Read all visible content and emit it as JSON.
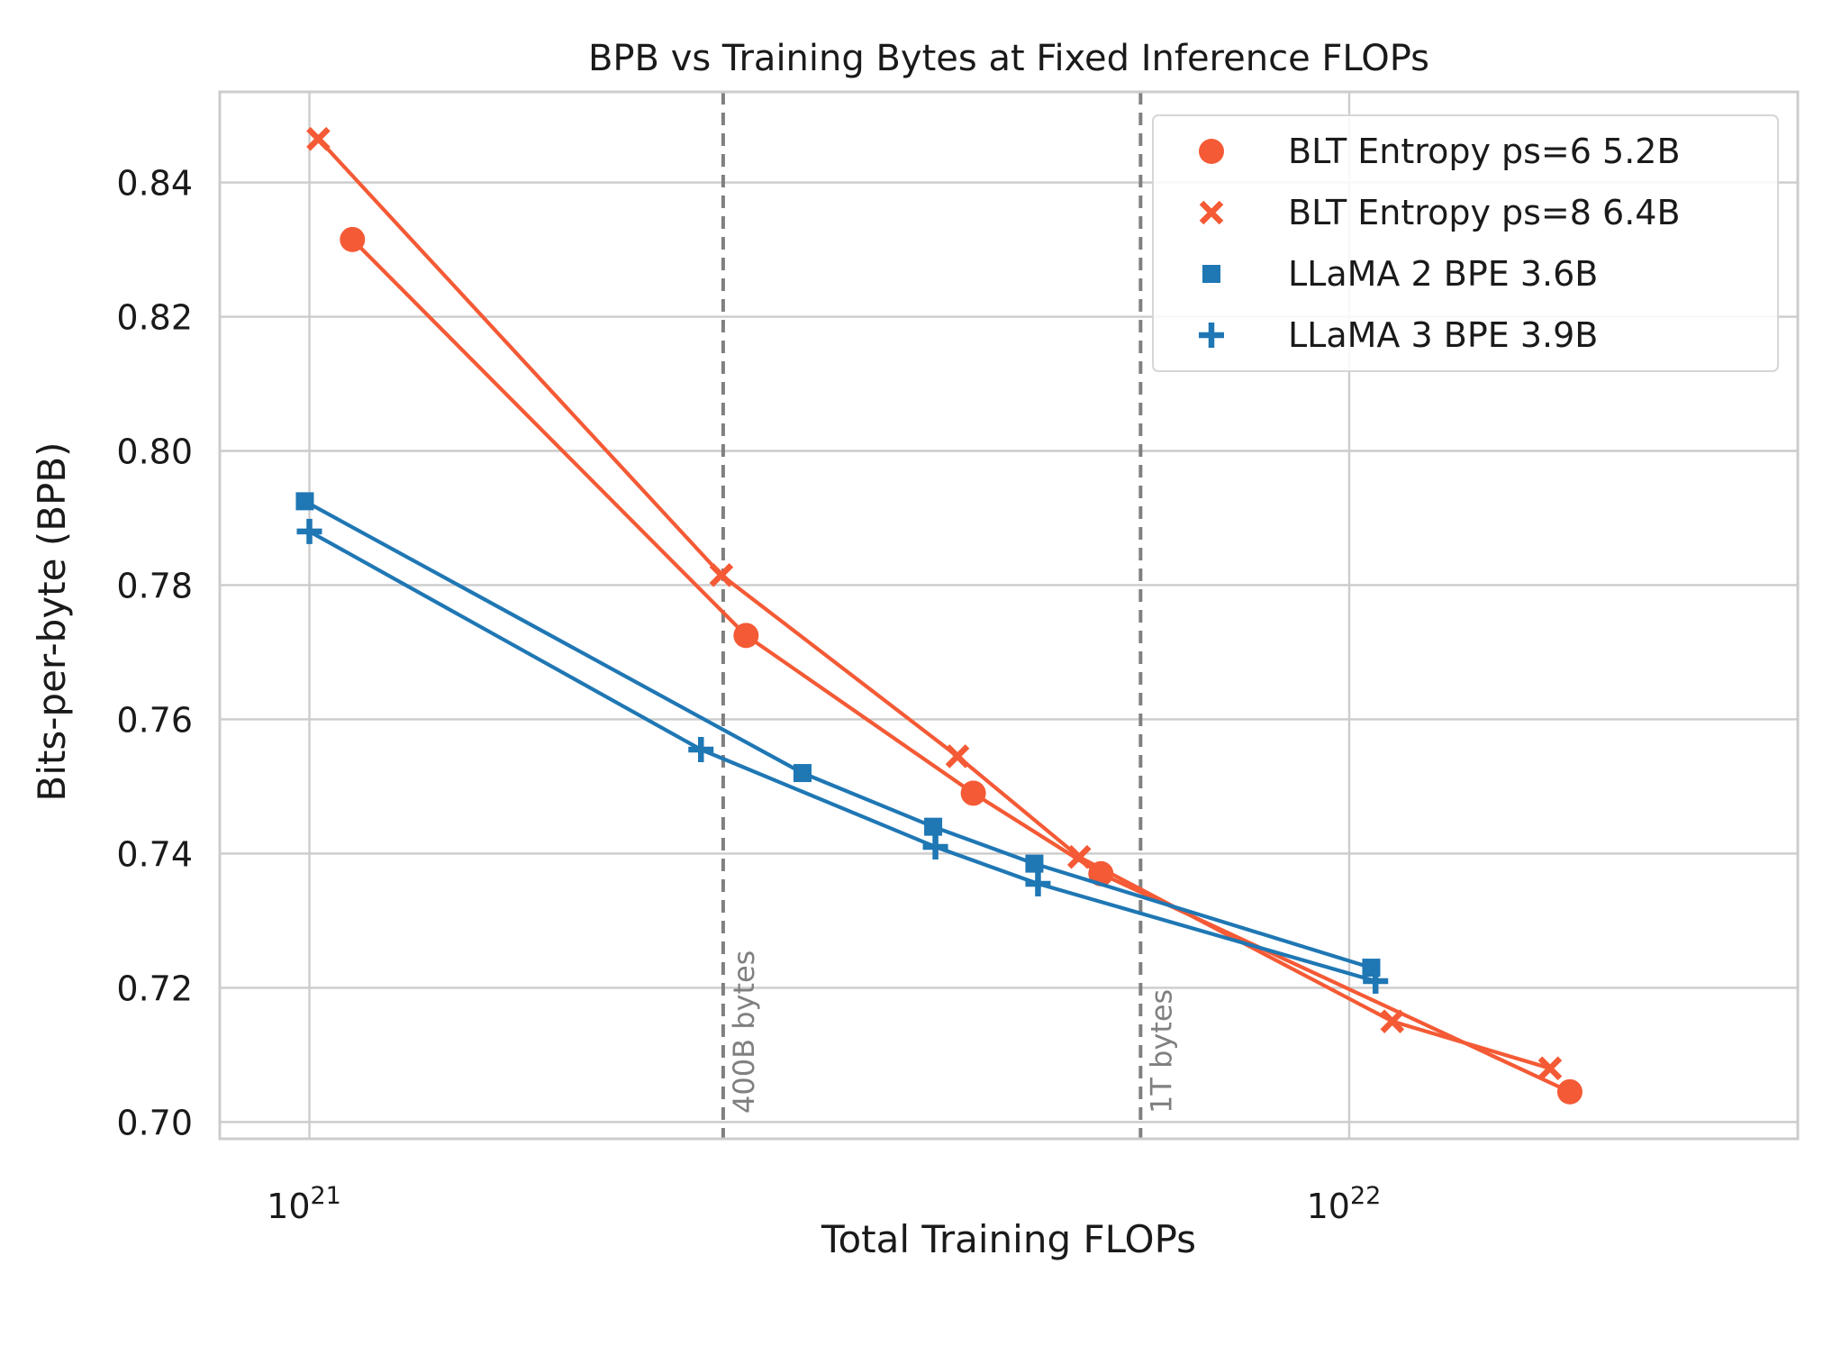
{
  "chart_data": {
    "type": "line",
    "title": "BPB vs Training Bytes at Fixed Inference FLOPs",
    "xlabel": "Total Training FLOPs",
    "ylabel": "Bits-per-byte (BPB)",
    "x_scale": "log",
    "xlim": [
      8.2e+20,
      2.7e+22
    ],
    "ylim": [
      0.6975,
      0.8535
    ],
    "grid": true,
    "legend_position": "top-right",
    "x_ticks": [
      {
        "value": 1e+21,
        "base": "10",
        "exp": "21"
      },
      {
        "value": 1e+22,
        "base": "10",
        "exp": "22"
      }
    ],
    "y_ticks": [
      {
        "value": 0.7,
        "label": "0.70"
      },
      {
        "value": 0.72,
        "label": "0.72"
      },
      {
        "value": 0.74,
        "label": "0.74"
      },
      {
        "value": 0.76,
        "label": "0.76"
      },
      {
        "value": 0.78,
        "label": "0.78"
      },
      {
        "value": 0.8,
        "label": "0.80"
      },
      {
        "value": 0.82,
        "label": "0.82"
      },
      {
        "value": 0.84,
        "label": "0.84"
      }
    ],
    "reference_lines": [
      {
        "x": 2.5e+21,
        "label": "400B bytes"
      },
      {
        "x": 6.3e+21,
        "label": "1T bytes"
      }
    ],
    "series": [
      {
        "name": "BLT Entropy ps=6 5.2B",
        "color": "#f45a35",
        "marker": "circle",
        "points": [
          {
            "x": 1.1e+21,
            "y": 0.8315
          },
          {
            "x": 2.63e+21,
            "y": 0.7725
          },
          {
            "x": 4.35e+21,
            "y": 0.749
          },
          {
            "x": 5.77e+21,
            "y": 0.737
          },
          {
            "x": 1.63e+22,
            "y": 0.7045
          }
        ]
      },
      {
        "name": "BLT Entropy ps=8 6.4B",
        "color": "#f45a35",
        "marker": "x",
        "points": [
          {
            "x": 1.02e+21,
            "y": 0.8465
          },
          {
            "x": 2.49e+21,
            "y": 0.7815
          },
          {
            "x": 4.2e+21,
            "y": 0.7545
          },
          {
            "x": 5.5e+21,
            "y": 0.7395
          },
          {
            "x": 1.1e+22,
            "y": 0.715
          },
          {
            "x": 1.56e+22,
            "y": 0.708
          }
        ]
      },
      {
        "name": "LLaMA 2 BPE 3.6B",
        "color": "#1f77b4",
        "marker": "square",
        "points": [
          {
            "x": 9.9e+20,
            "y": 0.7925
          },
          {
            "x": 2.98e+21,
            "y": 0.752
          },
          {
            "x": 3.98e+21,
            "y": 0.744
          },
          {
            "x": 4.98e+21,
            "y": 0.7385
          },
          {
            "x": 1.05e+22,
            "y": 0.723
          }
        ]
      },
      {
        "name": "LLaMA 3 BPE 3.9B",
        "color": "#1f77b4",
        "marker": "plus",
        "points": [
          {
            "x": 1e+21,
            "y": 0.788
          },
          {
            "x": 2.38e+21,
            "y": 0.7555
          },
          {
            "x": 4e+21,
            "y": 0.741
          },
          {
            "x": 5.02e+21,
            "y": 0.7355
          },
          {
            "x": 1.06e+22,
            "y": 0.721
          }
        ]
      }
    ]
  }
}
